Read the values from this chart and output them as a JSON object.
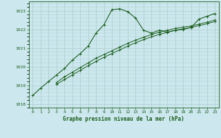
{
  "title": "Graphe pression niveau de la mer (hPa)",
  "bg_color": "#cce8ee",
  "grid_color": "#aacccc",
  "line_color": "#1a5c1a",
  "xlim": [
    -0.5,
    23.5
  ],
  "ylim": [
    1017.8,
    1023.5
  ],
  "yticks": [
    1018,
    1019,
    1020,
    1021,
    1022,
    1023
  ],
  "xticks": [
    0,
    1,
    2,
    3,
    4,
    5,
    6,
    7,
    8,
    9,
    10,
    11,
    12,
    13,
    14,
    15,
    16,
    17,
    18,
    19,
    20,
    21,
    22,
    23
  ],
  "series1_x": [
    0,
    1,
    2,
    3,
    4,
    5,
    6,
    7,
    8,
    9,
    10,
    11,
    12,
    13,
    14,
    15,
    16,
    17,
    18,
    19,
    20,
    21,
    22,
    23
  ],
  "series1_y": [
    1018.45,
    1018.85,
    1019.2,
    1019.55,
    1019.9,
    1020.35,
    1020.7,
    1021.1,
    1021.8,
    1022.25,
    1023.05,
    1023.1,
    1022.95,
    1022.6,
    1021.95,
    1021.8,
    1021.95,
    1021.85,
    1021.95,
    1022.0,
    1022.1,
    1022.55,
    1022.7,
    1022.85
  ],
  "series2_x": [
    3,
    4,
    5,
    6,
    7,
    8,
    9,
    10,
    11,
    12,
    13,
    14,
    15,
    16,
    17,
    18,
    19,
    20,
    21,
    22,
    23
  ],
  "series2_y": [
    1019.15,
    1019.45,
    1019.7,
    1019.95,
    1020.2,
    1020.45,
    1020.65,
    1020.85,
    1021.05,
    1021.25,
    1021.42,
    1021.58,
    1021.72,
    1021.85,
    1021.95,
    1022.05,
    1022.12,
    1022.18,
    1022.28,
    1022.38,
    1022.5
  ],
  "series3_x": [
    3,
    4,
    5,
    6,
    7,
    8,
    9,
    10,
    11,
    12,
    13,
    14,
    15,
    16,
    17,
    18,
    19,
    20,
    21,
    22,
    23
  ],
  "series3_y": [
    1019.05,
    1019.3,
    1019.55,
    1019.8,
    1020.05,
    1020.28,
    1020.5,
    1020.7,
    1020.9,
    1021.1,
    1021.28,
    1021.45,
    1021.6,
    1021.73,
    1021.84,
    1021.95,
    1022.03,
    1022.1,
    1022.2,
    1022.3,
    1022.42
  ]
}
